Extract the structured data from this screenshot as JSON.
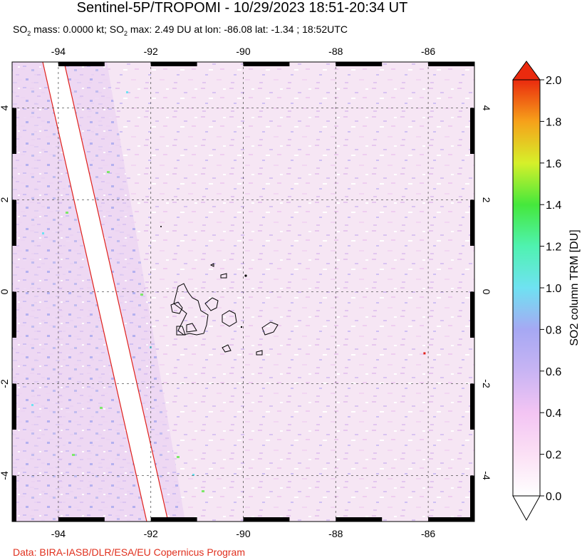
{
  "title": "Sentinel-5P/TROPOMI - 10/29/2023 18:51-20:34 UT",
  "subtitle_parts": {
    "a": "SO",
    "a_sub": "2",
    "b": " mass: 0.0000 kt; SO",
    "b_sub": "2",
    "c": " max: 2.49 DU at lon: -86.08 lat: -1.34 ; 18:52UTC"
  },
  "footer": "Data: BIRA-IASB/DLR/ESA/EU Copernicus Program",
  "map": {
    "lon_range": [
      -95,
      -85
    ],
    "lat_range": [
      -5,
      5
    ],
    "lon_ticks": [
      -94,
      -92,
      -90,
      -88,
      -86
    ],
    "lat_ticks": [
      -4,
      -2,
      0,
      2,
      4
    ],
    "lon_tick_labels": [
      "-94",
      "-92",
      "-90",
      "-88",
      "-86"
    ],
    "lat_tick_labels": [
      "-4",
      "-2",
      "0",
      "2",
      "4"
    ],
    "swath_gap_color": "#ffffff",
    "swath_edge_color": "#e0201a",
    "max_marker": {
      "lon": -86.08,
      "lat": -1.34,
      "color": "#e0201a"
    }
  },
  "colorbar": {
    "label": "SO2 column TRM [DU]",
    "ticks": [
      "0.0",
      "0.2",
      "0.4",
      "0.6",
      "0.8",
      "1.0",
      "1.2",
      "1.4",
      "1.6",
      "1.8",
      "2.0"
    ],
    "min": 0.0,
    "max": 2.0
  }
}
